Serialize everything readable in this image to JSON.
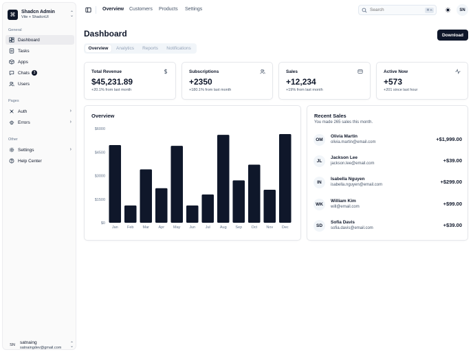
{
  "sidebar": {
    "brand_title": "Shadcn Admin",
    "brand_subtitle": "Vite + ShadcnUI",
    "groups": {
      "general": "General",
      "pages": "Pages",
      "other": "Other"
    },
    "items": {
      "dashboard": "Dashboard",
      "tasks": "Tasks",
      "apps": "Apps",
      "chats": "Chats",
      "chats_badge": "3",
      "users": "Users",
      "auth": "Auth",
      "errors": "Errors",
      "settings": "Settings",
      "help": "Help Center"
    },
    "user": {
      "initials": "SN",
      "name": "satnaing",
      "email": "satnaingdev@gmail.com"
    }
  },
  "topbar": {
    "links": [
      "Overview",
      "Customers",
      "Products",
      "Settings"
    ],
    "search_placeholder": "Search",
    "search_shortcut": "⌘ K",
    "avatar": "SN"
  },
  "header": {
    "title": "Dashboard",
    "download_label": "Download",
    "tabs": [
      "Overview",
      "Analytics",
      "Reports",
      "Notifications"
    ]
  },
  "stats": [
    {
      "title": "Total Revenue",
      "icon": "dollar-icon",
      "value": "$45,231.89",
      "sub": "+20.1% from last month"
    },
    {
      "title": "Subscriptions",
      "icon": "users-icon",
      "value": "+2350",
      "sub": "+180.1% from last month"
    },
    {
      "title": "Sales",
      "icon": "credit-card-icon",
      "value": "+12,234",
      "sub": "+19% from last month"
    },
    {
      "title": "Active Now",
      "icon": "activity-icon",
      "value": "+573",
      "sub": "+201 since last hour"
    }
  ],
  "overview": {
    "title": "Overview"
  },
  "chart_data": {
    "type": "bar",
    "title": "Overview",
    "categories": [
      "Jan",
      "Feb",
      "Mar",
      "Apr",
      "May",
      "Jun",
      "Jul",
      "Aug",
      "Sep",
      "Oct",
      "Nov",
      "Dec"
    ],
    "values": [
      4950,
      1100,
      3400,
      2200,
      4900,
      1100,
      1800,
      5600,
      2700,
      3700,
      2100,
      5650
    ],
    "yticks": [
      "$0",
      "$1500",
      "$3000",
      "$4500",
      "$6000"
    ],
    "ytick_values": [
      0,
      1500,
      3000,
      4500,
      6000
    ],
    "ylim": [
      0,
      6000
    ],
    "bar_color": "#0f172a",
    "xlabel": "",
    "ylabel": ""
  },
  "recent_sales": {
    "title": "Recent Sales",
    "subtitle": "You made 265 sales this month.",
    "items": [
      {
        "initials": "OM",
        "name": "Olivia Martin",
        "email": "olivia.martin@email.com",
        "amount": "+$1,999.00"
      },
      {
        "initials": "JL",
        "name": "Jackson Lee",
        "email": "jackson.lee@email.com",
        "amount": "+$39.00"
      },
      {
        "initials": "IN",
        "name": "Isabella Nguyen",
        "email": "isabella.nguyen@email.com",
        "amount": "+$299.00"
      },
      {
        "initials": "WK",
        "name": "William Kim",
        "email": "will@email.com",
        "amount": "+$99.00"
      },
      {
        "initials": "SD",
        "name": "Sofia Davis",
        "email": "sofia.davis@email.com",
        "amount": "+$39.00"
      }
    ]
  },
  "colors": {
    "primary": "#0f172a",
    "muted": "#475569",
    "border": "#e5e7eb"
  }
}
